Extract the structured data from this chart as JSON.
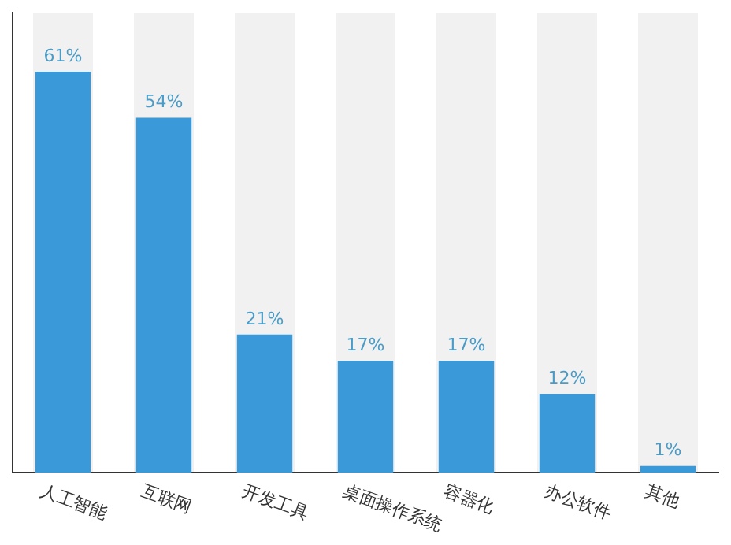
{
  "chart_data": {
    "type": "bar",
    "categories": [
      "人工智能",
      "互联网",
      "开发工具",
      "桌面操作系统",
      "容器化",
      "办公软件",
      "其他"
    ],
    "values": [
      61,
      54,
      21,
      17,
      17,
      12,
      1
    ],
    "color": "#3a9ad9",
    "value_labels": [
      "61%",
      "54%",
      "21%",
      "17%",
      "17%",
      "12%",
      "1%"
    ],
    "grid": false,
    "legend": false
  }
}
